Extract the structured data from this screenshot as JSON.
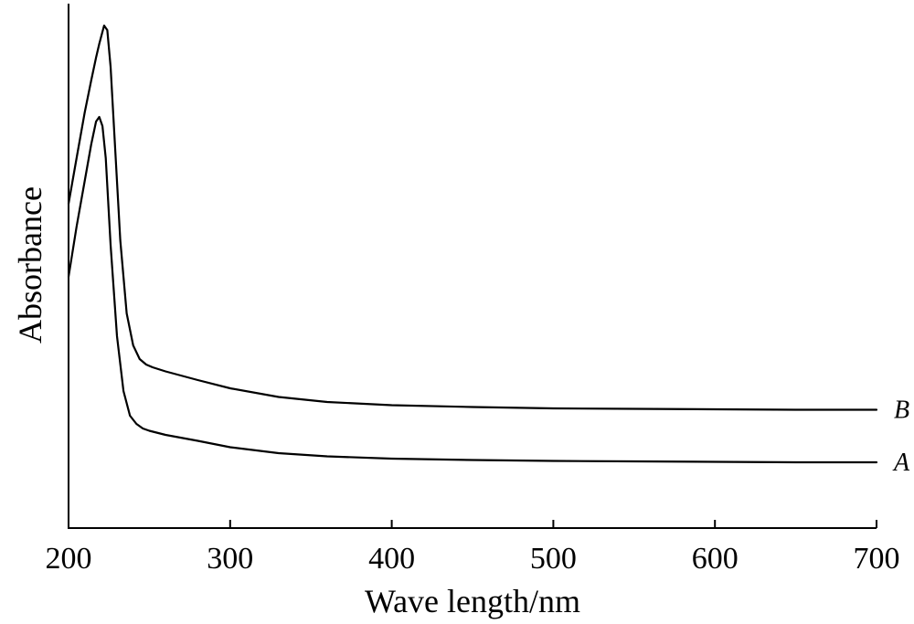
{
  "chart_data": {
    "type": "line",
    "title": "",
    "xlabel": "Wave length/nm",
    "ylabel": "Absorbance",
    "xlim": [
      200,
      700
    ],
    "xticks": [
      "200",
      "300",
      "400",
      "500",
      "600",
      "700"
    ],
    "yticks": [],
    "grid": false,
    "legend": "series labels at right end of each curve",
    "series": [
      {
        "name": "A",
        "x": [
          200,
          205,
          210,
          214,
          217,
          219,
          221,
          223,
          226,
          230,
          234,
          238,
          242,
          246,
          250,
          260,
          280,
          300,
          330,
          360,
          400,
          450,
          500,
          550,
          600,
          650,
          700
        ],
        "y": [
          0.55,
          0.66,
          0.76,
          0.84,
          0.89,
          0.9,
          0.88,
          0.81,
          0.62,
          0.42,
          0.3,
          0.246,
          0.228,
          0.218,
          0.213,
          0.204,
          0.191,
          0.177,
          0.164,
          0.157,
          0.152,
          0.149,
          0.147,
          0.146,
          0.145,
          0.144,
          0.144
        ]
      },
      {
        "name": "B",
        "x": [
          200,
          205,
          210,
          214,
          217,
          219,
          222,
          224,
          226,
          229,
          232,
          236,
          240,
          244,
          248,
          252,
          260,
          280,
          300,
          330,
          360,
          400,
          450,
          500,
          550,
          600,
          650,
          700
        ],
        "y": [
          0.71,
          0.81,
          0.91,
          0.98,
          1.03,
          1.06,
          1.1,
          1.09,
          1.01,
          0.82,
          0.63,
          0.47,
          0.4,
          0.37,
          0.358,
          0.352,
          0.343,
          0.324,
          0.306,
          0.287,
          0.276,
          0.269,
          0.265,
          0.262,
          0.261,
          0.26,
          0.259,
          0.259
        ]
      }
    ]
  }
}
